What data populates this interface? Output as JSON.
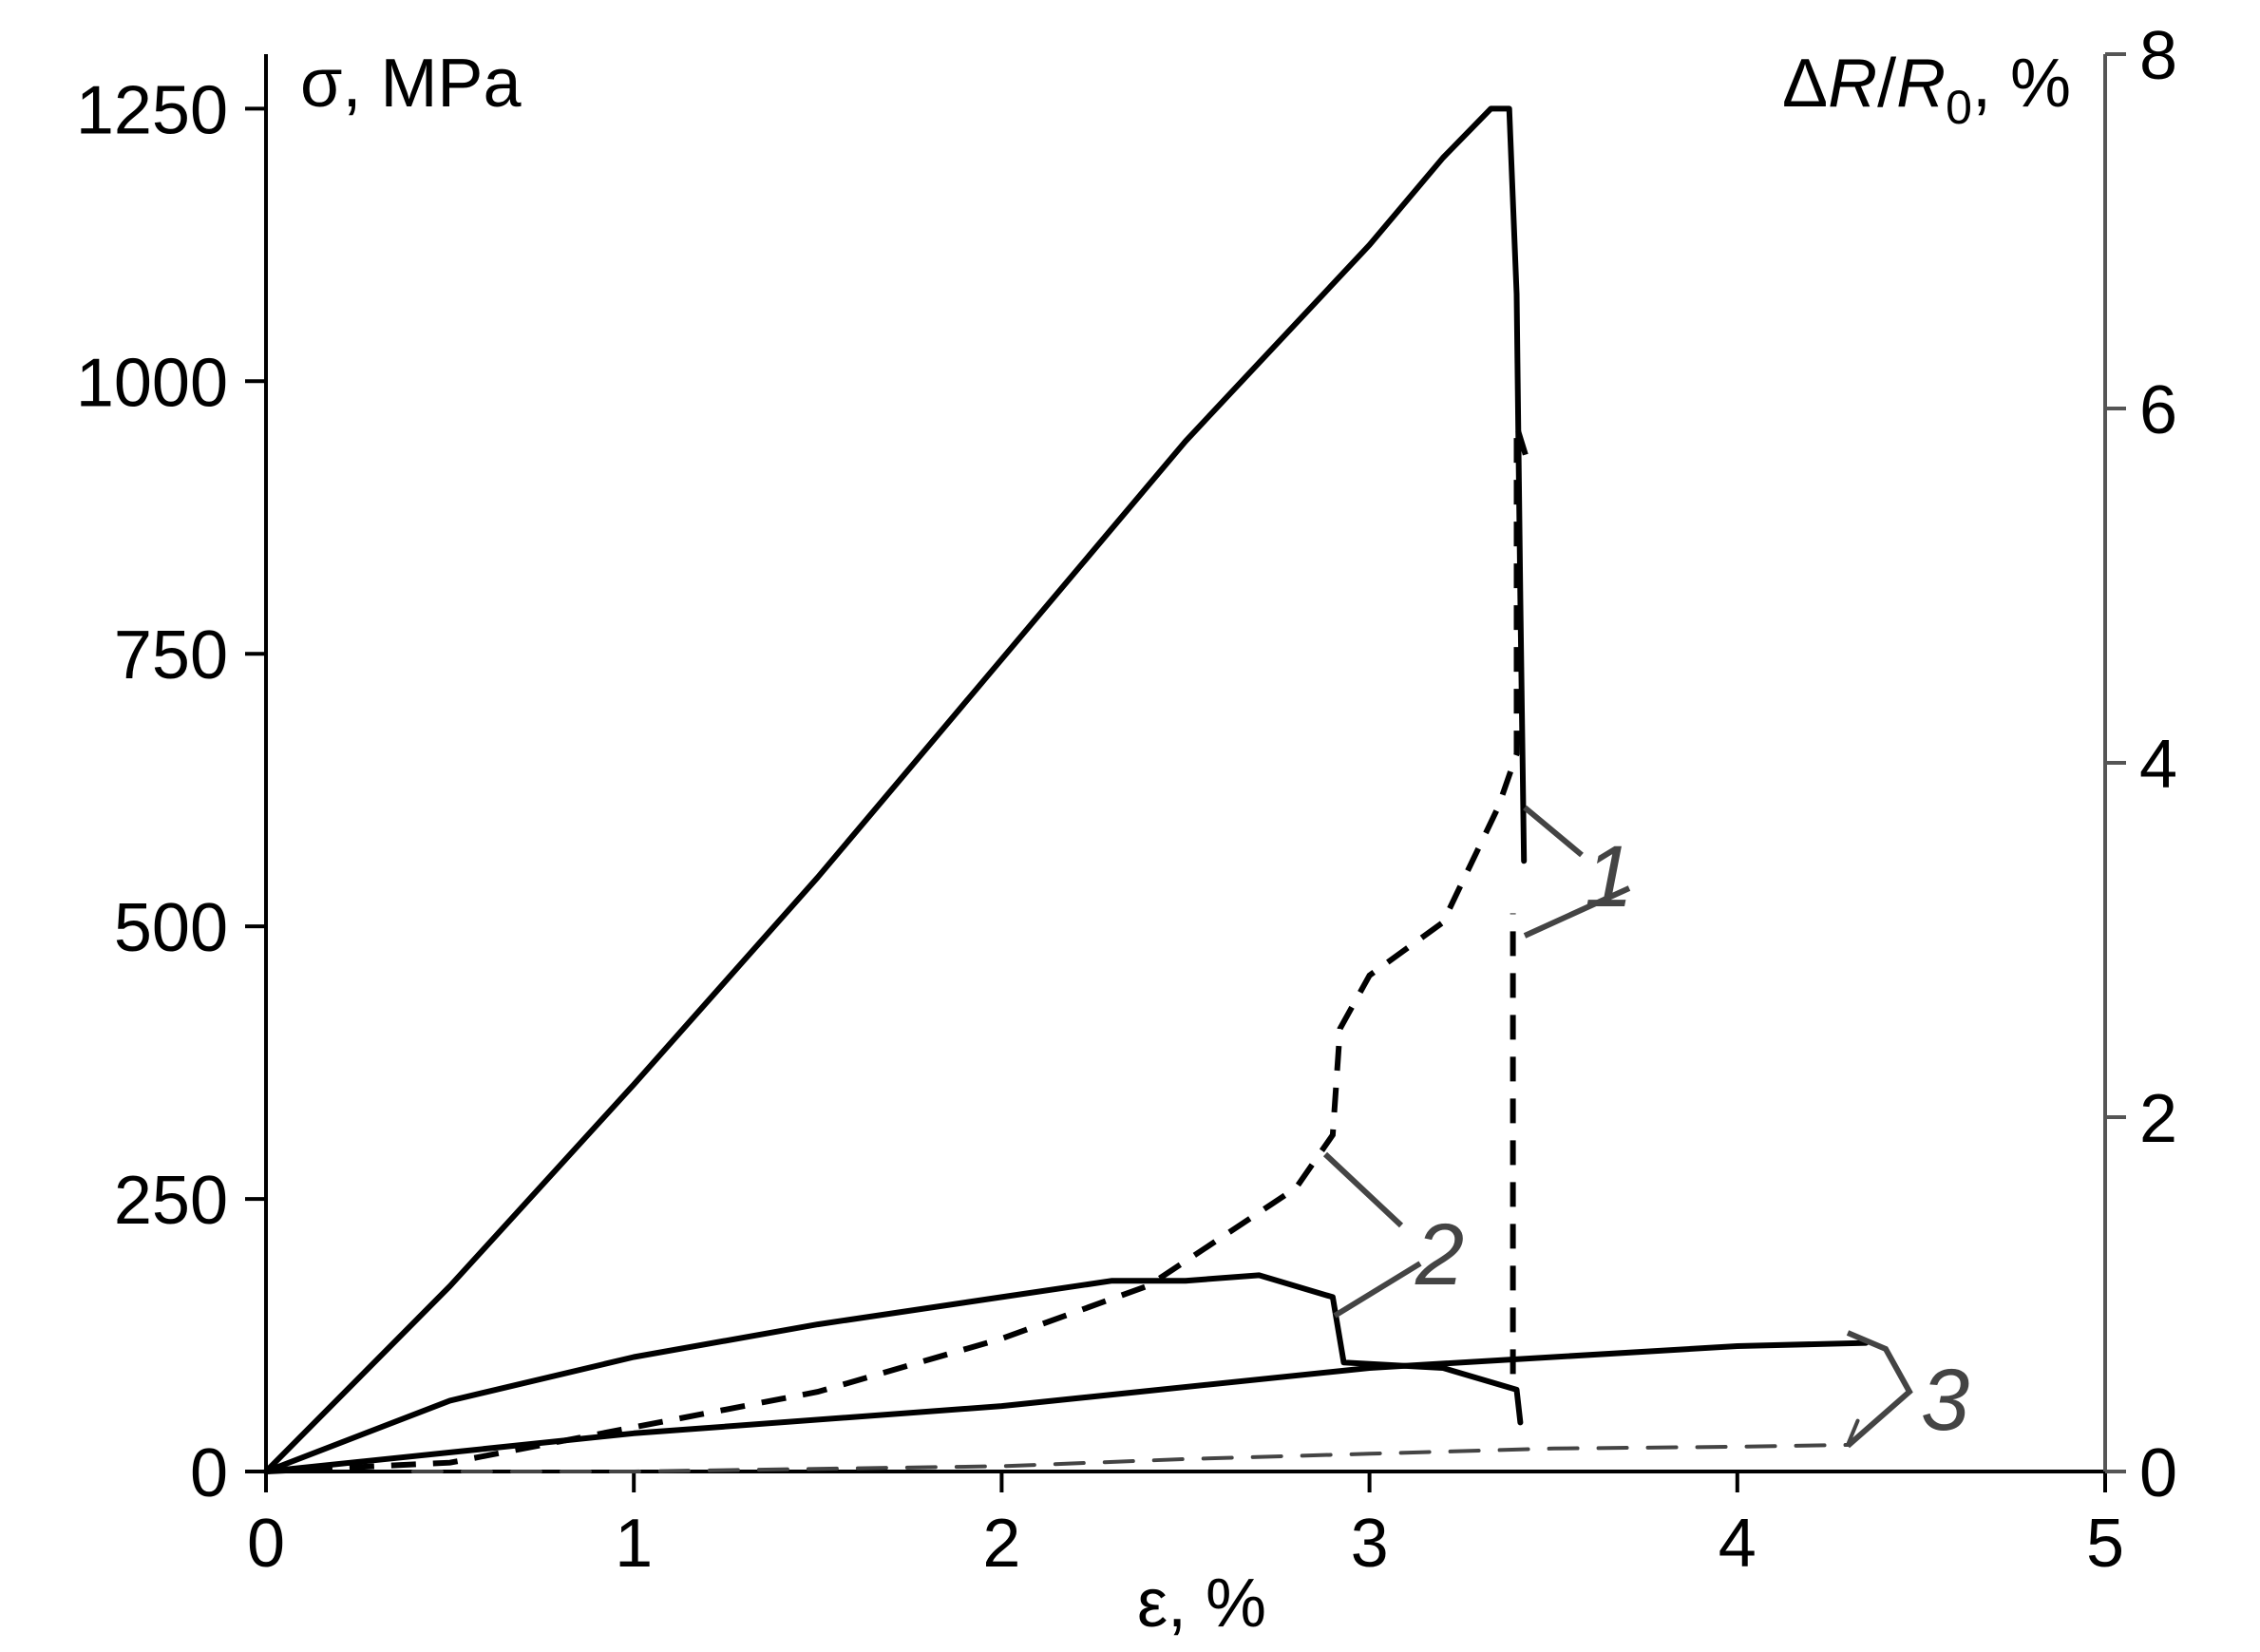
{
  "chart_data": {
    "type": "line",
    "x_axis": {
      "label": "ε, %",
      "range": [
        0,
        5
      ],
      "ticks": [
        0,
        1,
        2,
        3,
        4,
        5
      ]
    },
    "y_axis_left": {
      "label": "σ, MPa",
      "range": [
        0,
        1300
      ],
      "ticks": [
        0,
        250,
        500,
        750,
        1000,
        1250
      ]
    },
    "y_axis_right": {
      "label_parts": [
        "Δ",
        "R",
        "/",
        "R",
        "0",
        ", %"
      ],
      "range": [
        0,
        8
      ],
      "ticks": [
        0,
        2,
        4,
        6,
        8
      ]
    },
    "curve_labels": [
      "1",
      "2",
      "3"
    ],
    "grid": false,
    "series": [
      {
        "label": "1",
        "quantity": "stress",
        "axis": "left",
        "style": "solid",
        "points": [
          [
            0,
            0
          ],
          [
            0.5,
            170
          ],
          [
            1.0,
            355
          ],
          [
            1.5,
            545
          ],
          [
            2.0,
            745
          ],
          [
            2.5,
            945
          ],
          [
            3.0,
            1125
          ],
          [
            3.2,
            1205
          ],
          [
            3.33,
            1250
          ],
          [
            3.38,
            1250
          ],
          [
            3.4,
            1080
          ],
          [
            3.41,
            800
          ],
          [
            3.42,
            560
          ]
        ]
      },
      {
        "label": "1",
        "quantity": "resistance",
        "axis": "right",
        "style": "dashed",
        "points": [
          [
            0,
            0
          ],
          [
            0.5,
            0.05
          ],
          [
            1.0,
            0.25
          ],
          [
            1.5,
            0.45
          ],
          [
            2.0,
            0.75
          ],
          [
            2.4,
            1.05
          ],
          [
            2.8,
            1.6
          ],
          [
            2.9,
            1.9
          ],
          [
            2.92,
            2.5
          ],
          [
            3.0,
            2.8
          ],
          [
            3.2,
            3.1
          ],
          [
            3.35,
            3.75
          ],
          [
            3.4,
            4.05
          ],
          [
            3.4,
            5.9
          ],
          [
            3.43,
            5.7
          ]
        ]
      },
      {
        "label": "2",
        "quantity": "stress",
        "axis": "left",
        "style": "solid",
        "points": [
          [
            0,
            0
          ],
          [
            0.5,
            65
          ],
          [
            1.0,
            105
          ],
          [
            1.5,
            135
          ],
          [
            2.0,
            160
          ],
          [
            2.3,
            175
          ],
          [
            2.5,
            175
          ],
          [
            2.7,
            180
          ],
          [
            2.9,
            160
          ],
          [
            2.93,
            100
          ],
          [
            3.2,
            95
          ],
          [
            3.4,
            75
          ],
          [
            3.41,
            45
          ]
        ]
      },
      {
        "label": "2",
        "quantity": "resistance",
        "axis": "right",
        "style": "dashed",
        "points": [
          [
            3.39,
            0.55
          ],
          [
            3.39,
            3.15
          ]
        ]
      },
      {
        "label": "3",
        "quantity": "stress",
        "axis": "left",
        "style": "solid",
        "points": [
          [
            0,
            0
          ],
          [
            1.0,
            35
          ],
          [
            2.0,
            60
          ],
          [
            3.0,
            95
          ],
          [
            4.0,
            115
          ],
          [
            4.35,
            118
          ]
        ]
      },
      {
        "label": "3",
        "quantity": "resistance",
        "axis": "right",
        "style": "dashed",
        "points": [
          [
            0.4,
            0.0
          ],
          [
            1.0,
            0.0
          ],
          [
            2.0,
            0.03
          ],
          [
            2.5,
            0.07
          ],
          [
            3.0,
            0.1
          ],
          [
            3.5,
            0.13
          ],
          [
            4.0,
            0.14
          ],
          [
            4.3,
            0.15
          ],
          [
            4.33,
            0.3
          ]
        ]
      }
    ]
  }
}
